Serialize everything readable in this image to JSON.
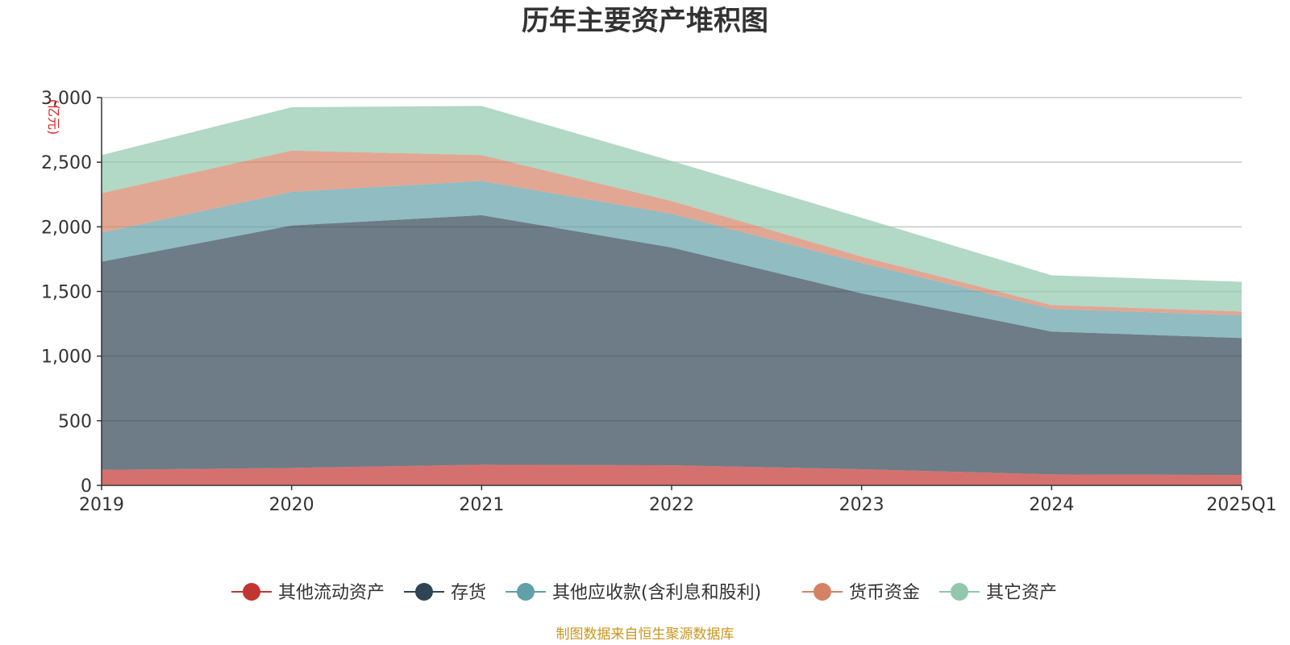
{
  "chart_data": {
    "type": "area",
    "stacked": true,
    "title": "历年主要资产堆积图",
    "unit_label": "(亿元)",
    "categories": [
      "2019",
      "2020",
      "2021",
      "2022",
      "2023",
      "2024",
      "2025Q1"
    ],
    "ylim": [
      0,
      3000
    ],
    "yticks": [
      0,
      500,
      1000,
      1500,
      2000,
      2500,
      3000
    ],
    "ytick_labels": [
      "0",
      "500",
      "1,000",
      "1,500",
      "2,000",
      "2,500",
      "3,000"
    ],
    "grid": true,
    "legend_position": "bottom",
    "series": [
      {
        "name": "其他流动资产",
        "color": "#c23531",
        "values": [
          120,
          135,
          160,
          155,
          125,
          85,
          80
        ]
      },
      {
        "name": "存货",
        "color": "#2f4554",
        "values": [
          1610,
          1875,
          1930,
          1685,
          1360,
          1105,
          1060
        ]
      },
      {
        "name": "其他应收款(含利息和股利)",
        "color": "#61a0a8",
        "values": [
          225,
          260,
          265,
          260,
          235,
          175,
          175
        ]
      },
      {
        "name": "货币资金",
        "color": "#d48265",
        "values": [
          305,
          320,
          200,
          100,
          50,
          30,
          30
        ]
      },
      {
        "name": "其它资产",
        "color": "#91c7ae",
        "values": [
          295,
          335,
          380,
          310,
          300,
          230,
          230
        ]
      }
    ],
    "source_note": "制图数据来自恒生聚源数据库"
  }
}
